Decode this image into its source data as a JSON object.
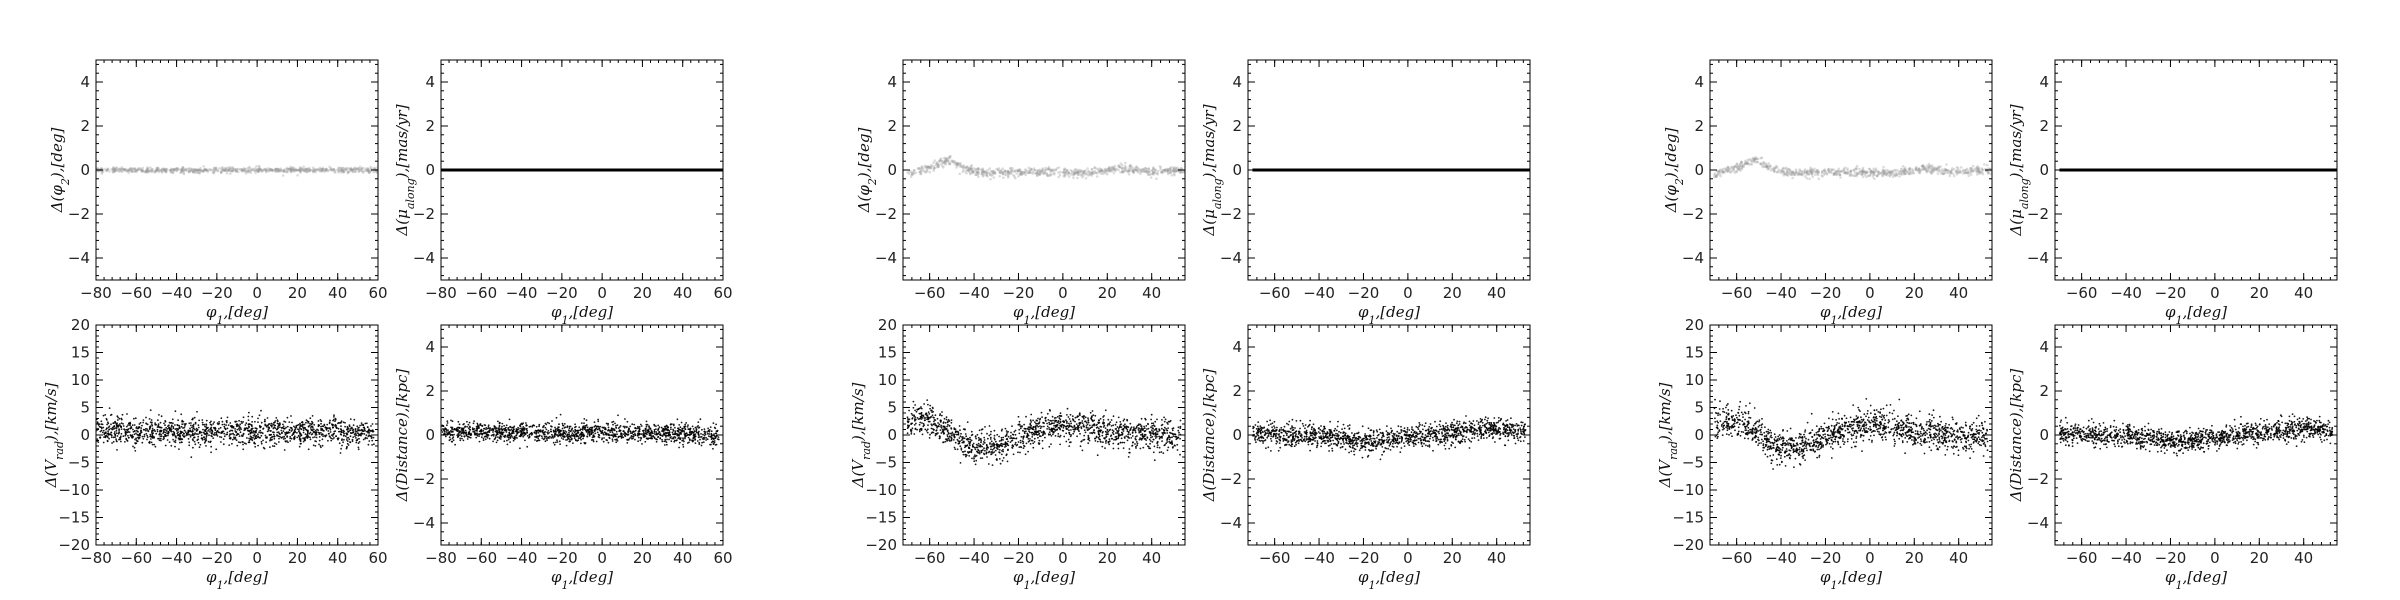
{
  "figure": {
    "background": "#ffffff",
    "point_color": "#000000",
    "faint_point_color": "#9a9a9a"
  },
  "chart_data": [
    {
      "type": "scatter",
      "group": 1,
      "xlabel": "φ1,[deg]",
      "ylabel": "Δ(φ2),[deg]",
      "xlim": [
        -80,
        60
      ],
      "ylim": [
        -5,
        5
      ],
      "xticks": [
        -80,
        -60,
        -40,
        -20,
        0,
        20,
        40,
        60
      ],
      "yticks": [
        -4,
        -2,
        0,
        2,
        4
      ],
      "trend": {
        "x": [
          -80,
          -40,
          0,
          40,
          60
        ],
        "y": [
          0,
          0,
          0,
          0,
          0
        ]
      },
      "spread": 0.06,
      "style": "faint-band"
    },
    {
      "type": "scatter",
      "group": 1,
      "xlabel": "φ1,[deg]",
      "ylabel": "Δ(μalong),[mas/yr]",
      "xlim": [
        -80,
        60
      ],
      "ylim": [
        -5,
        5
      ],
      "xticks": [
        -80,
        -60,
        -40,
        -20,
        0,
        20,
        40,
        60
      ],
      "yticks": [
        -4,
        -2,
        0,
        2,
        4
      ],
      "trend": {
        "x": [
          -80,
          60
        ],
        "y": [
          0,
          0
        ]
      },
      "spread": 0.02,
      "style": "line"
    },
    {
      "type": "scatter",
      "group": 1,
      "xlabel": "φ1,[deg]",
      "ylabel": "Δ(Vrad),[km/s]",
      "xlim": [
        -80,
        60
      ],
      "ylim": [
        -20,
        20
      ],
      "xticks": [
        -80,
        -60,
        -40,
        -20,
        0,
        20,
        40,
        60
      ],
      "yticks": [
        -20,
        -15,
        -10,
        -5,
        0,
        5,
        10,
        15,
        20
      ],
      "trend": {
        "x": [
          -80,
          -40,
          0,
          40,
          58
        ],
        "y": [
          0.8,
          0.6,
          0.6,
          0.6,
          0.5
        ]
      },
      "spread": 1.2,
      "style": "dense"
    },
    {
      "type": "scatter",
      "group": 1,
      "xlabel": "φ1,[deg]",
      "ylabel": "Δ(Distance),[kpc]",
      "xlim": [
        -80,
        60
      ],
      "ylim": [
        -5,
        5
      ],
      "xticks": [
        -80,
        -60,
        -40,
        -20,
        0,
        20,
        40,
        60
      ],
      "yticks": [
        -4,
        -2,
        0,
        2,
        4
      ],
      "trend": {
        "x": [
          -80,
          -40,
          0,
          40,
          58
        ],
        "y": [
          0.15,
          0.1,
          0.1,
          0.1,
          -0.1
        ]
      },
      "spread": 0.22,
      "style": "dense"
    },
    {
      "type": "scatter",
      "group": 2,
      "xlabel": "φ1,[deg]",
      "ylabel": "Δ(φ2),[deg]",
      "xlim": [
        -72,
        55
      ],
      "ylim": [
        -5,
        5
      ],
      "xticks": [
        -60,
        -40,
        -20,
        0,
        20,
        40
      ],
      "yticks": [
        -4,
        -2,
        0,
        2,
        4
      ],
      "trend": {
        "x": [
          -70,
          -60,
          -52,
          -45,
          -35,
          -20,
          0,
          10,
          25,
          40,
          55
        ],
        "y": [
          -0.2,
          0.1,
          0.45,
          0.1,
          -0.15,
          -0.1,
          -0.1,
          -0.15,
          0.05,
          -0.1,
          0
        ]
      },
      "spread": 0.1,
      "style": "faint-band"
    },
    {
      "type": "scatter",
      "group": 2,
      "xlabel": "φ1,[deg]",
      "ylabel": "Δ(μalong),[mas/yr]",
      "xlim": [
        -72,
        55
      ],
      "ylim": [
        -5,
        5
      ],
      "xticks": [
        -60,
        -40,
        -20,
        0,
        20,
        40
      ],
      "yticks": [
        -4,
        -2,
        0,
        2,
        4
      ],
      "trend": {
        "x": [
          -70,
          55
        ],
        "y": [
          0,
          0
        ]
      },
      "spread": 0.02,
      "style": "line"
    },
    {
      "type": "scatter",
      "group": 2,
      "xlabel": "φ1,[deg]",
      "ylabel": "Δ(Vrad),[km/s]",
      "xlim": [
        -72,
        55
      ],
      "ylim": [
        -20,
        20
      ],
      "xticks": [
        -60,
        -40,
        -20,
        0,
        20,
        40
      ],
      "yticks": [
        -20,
        -15,
        -10,
        -5,
        0,
        5,
        10,
        15,
        20
      ],
      "trend": {
        "x": [
          -70,
          -60,
          -50,
          -40,
          -30,
          -20,
          -10,
          0,
          10,
          20,
          30,
          40,
          53
        ],
        "y": [
          2.5,
          2.8,
          0,
          -2.5,
          -2,
          -0.5,
          1.2,
          2,
          1.5,
          0.5,
          0,
          0,
          -0.5
        ]
      },
      "spread": 1.4,
      "style": "dense"
    },
    {
      "type": "scatter",
      "group": 2,
      "xlabel": "φ1,[deg]",
      "ylabel": "Δ(Distance),[kpc]",
      "xlim": [
        -72,
        55
      ],
      "ylim": [
        -5,
        5
      ],
      "xticks": [
        -60,
        -40,
        -20,
        0,
        20,
        40
      ],
      "yticks": [
        -4,
        -2,
        0,
        2,
        4
      ],
      "trend": {
        "x": [
          -70,
          -50,
          -30,
          -20,
          0,
          20,
          40,
          53
        ],
        "y": [
          0.1,
          0,
          -0.1,
          -0.3,
          -0.1,
          0.1,
          0.3,
          0.2
        ]
      },
      "spread": 0.25,
      "style": "dense"
    },
    {
      "type": "scatter",
      "group": 3,
      "xlabel": "φ1,[deg]",
      "ylabel": "Δ(φ2),[deg]",
      "xlim": [
        -72,
        55
      ],
      "ylim": [
        -5,
        5
      ],
      "xticks": [
        -60,
        -40,
        -20,
        0,
        20,
        40
      ],
      "yticks": [
        -4,
        -2,
        0,
        2,
        4
      ],
      "trend": {
        "x": [
          -70,
          -60,
          -52,
          -45,
          -35,
          -20,
          0,
          10,
          25,
          40,
          55
        ],
        "y": [
          -0.2,
          0.1,
          0.45,
          0.1,
          -0.15,
          -0.1,
          -0.1,
          -0.15,
          0.05,
          -0.1,
          0
        ]
      },
      "spread": 0.1,
      "style": "faint-band"
    },
    {
      "type": "scatter",
      "group": 3,
      "xlabel": "φ1,[deg]",
      "ylabel": "Δ(μalong),[mas/yr]",
      "xlim": [
        -72,
        55
      ],
      "ylim": [
        -5,
        5
      ],
      "xticks": [
        -60,
        -40,
        -20,
        0,
        20,
        40
      ],
      "yticks": [
        -4,
        -2,
        0,
        2,
        4
      ],
      "trend": {
        "x": [
          -70,
          55
        ],
        "y": [
          0,
          0
        ]
      },
      "spread": 0.02,
      "style": "line"
    },
    {
      "type": "scatter",
      "group": 3,
      "xlabel": "φ1,[deg]",
      "ylabel": "Δ(Vrad),[km/s]",
      "xlim": [
        -72,
        55
      ],
      "ylim": [
        -20,
        20
      ],
      "xticks": [
        -60,
        -40,
        -20,
        0,
        20,
        40
      ],
      "yticks": [
        -20,
        -15,
        -10,
        -5,
        0,
        5,
        10,
        15,
        20
      ],
      "trend": {
        "x": [
          -70,
          -60,
          -50,
          -40,
          -30,
          -20,
          -10,
          0,
          10,
          20,
          30,
          40,
          53
        ],
        "y": [
          2.5,
          2.8,
          0,
          -2.5,
          -2,
          -0.5,
          1.2,
          2,
          1.5,
          0.5,
          0,
          0,
          -0.5
        ]
      },
      "spread": 1.4,
      "style": "dense"
    },
    {
      "type": "scatter",
      "group": 3,
      "xlabel": "φ1,[deg]",
      "ylabel": "Δ(Distance),[kpc]",
      "xlim": [
        -72,
        55
      ],
      "ylim": [
        -5,
        5
      ],
      "xticks": [
        -60,
        -40,
        -20,
        0,
        20,
        40
      ],
      "yticks": [
        -4,
        -2,
        0,
        2,
        4
      ],
      "trend": {
        "x": [
          -70,
          -50,
          -30,
          -20,
          0,
          20,
          40,
          53
        ],
        "y": [
          0.1,
          0,
          -0.1,
          -0.3,
          -0.1,
          0.1,
          0.3,
          0.2
        ]
      },
      "spread": 0.25,
      "style": "dense"
    }
  ]
}
